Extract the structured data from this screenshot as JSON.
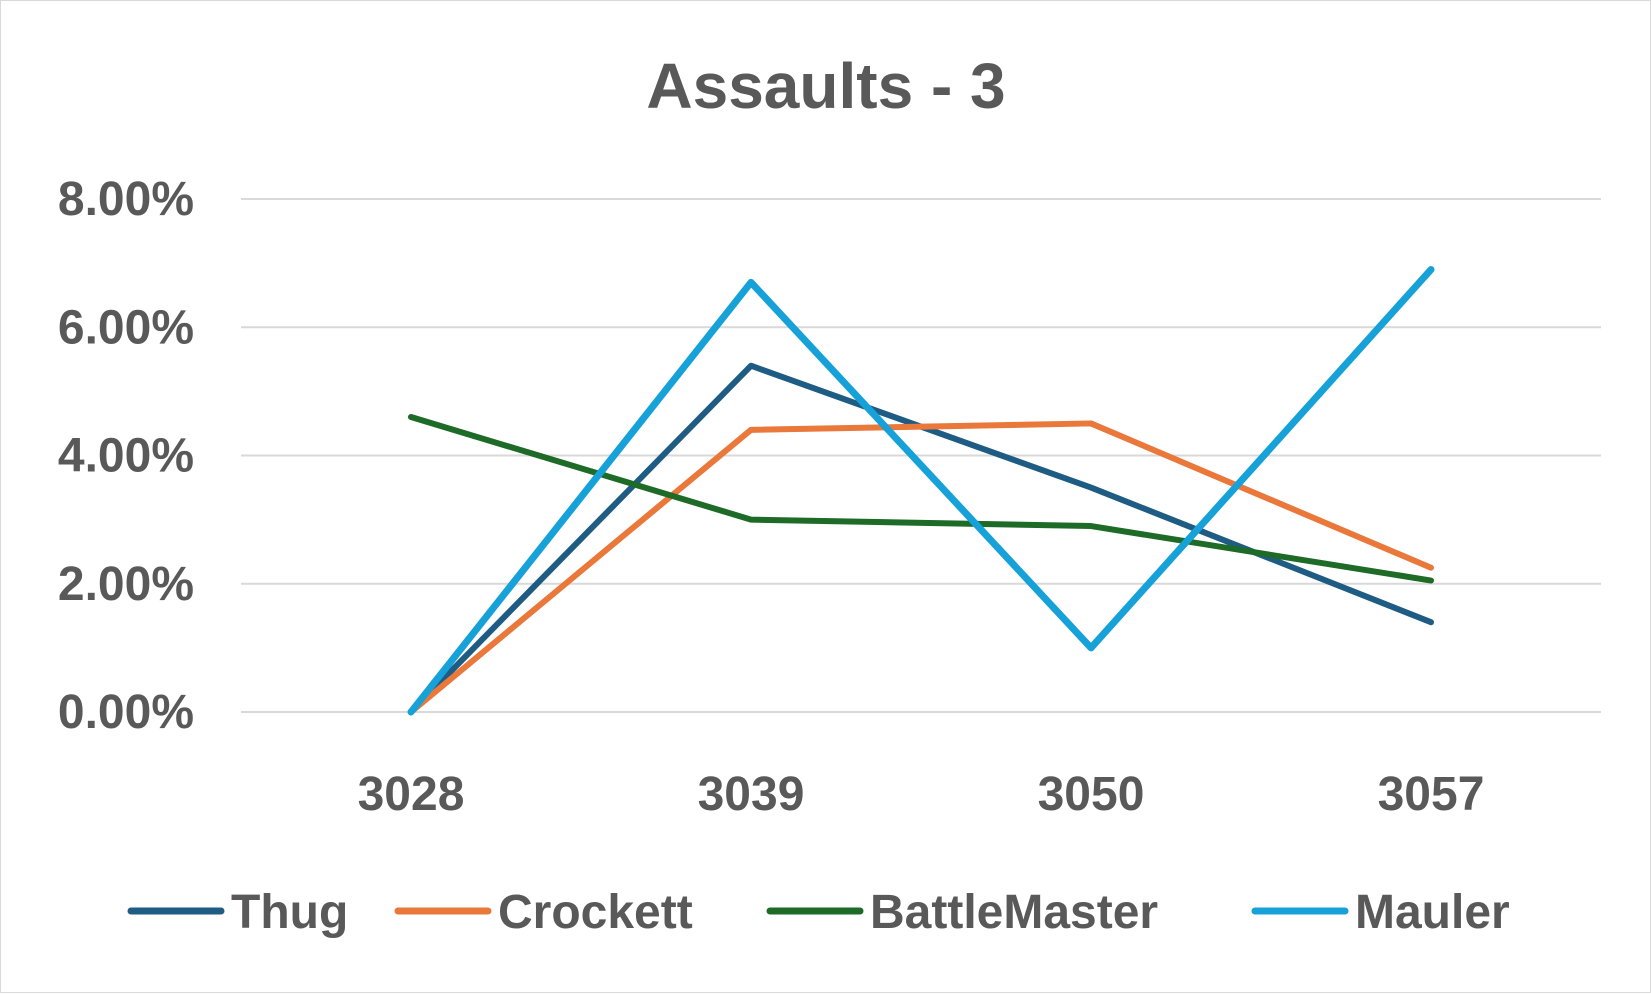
{
  "chart_data": {
    "type": "line",
    "title": "Assaults - 3",
    "xlabel": "",
    "ylabel": "",
    "categories": [
      "3028",
      "3039",
      "3050",
      "3057"
    ],
    "y_tick_labels": [
      "0.00%",
      "2.00%",
      "4.00%",
      "6.00%",
      "8.00%"
    ],
    "y_ticks": [
      0,
      2,
      4,
      6,
      8
    ],
    "ylim": [
      0,
      8
    ],
    "grid": true,
    "legend_position": "bottom",
    "series": [
      {
        "name": "Thug",
        "color": "#1f5c84",
        "values": [
          0.0,
          5.4,
          3.5,
          1.4
        ]
      },
      {
        "name": "Crockett",
        "color": "#e9783a",
        "values": [
          0.0,
          4.4,
          4.5,
          2.25
        ]
      },
      {
        "name": "BattleMaster",
        "color": "#1e6b27",
        "values": [
          4.6,
          3.0,
          2.9,
          2.05
        ]
      },
      {
        "name": "Mauler",
        "color": "#16a1d8",
        "values": [
          0.0,
          6.7,
          1.0,
          6.9
        ]
      }
    ]
  }
}
